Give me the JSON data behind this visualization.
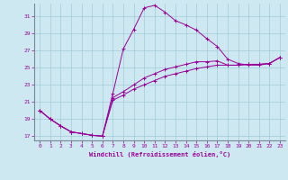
{
  "background_color": "#cde8f0",
  "line_color": "#990099",
  "grid_color": "#a0ccd8",
  "xlim": [
    -0.5,
    23.5
  ],
  "ylim": [
    16.5,
    32.5
  ],
  "xticks": [
    0,
    1,
    2,
    3,
    4,
    5,
    6,
    7,
    8,
    9,
    10,
    11,
    12,
    13,
    14,
    15,
    16,
    17,
    18,
    19,
    20,
    21,
    22,
    23
  ],
  "yticks": [
    17,
    19,
    21,
    23,
    25,
    27,
    29,
    31
  ],
  "xlabel": "Windchill (Refroidissement éolien,°C)",
  "hours": [
    0,
    1,
    2,
    3,
    4,
    5,
    6,
    7,
    8,
    9,
    10,
    11,
    12,
    13,
    14,
    15,
    16,
    17,
    18,
    19,
    20,
    21,
    22,
    23
  ],
  "main_curve": [
    20.0,
    19.0,
    18.2,
    17.5,
    17.3,
    17.1,
    17.0,
    22.0,
    27.2,
    29.5,
    32.0,
    32.3,
    31.5,
    30.5,
    30.0,
    29.4,
    28.4,
    27.5,
    26.0,
    25.5,
    25.3,
    25.3,
    25.5,
    26.2
  ],
  "line2": [
    20.0,
    19.0,
    18.2,
    17.5,
    17.3,
    17.1,
    17.0,
    21.2,
    21.8,
    22.5,
    23.0,
    23.5,
    24.0,
    24.3,
    24.6,
    24.9,
    25.1,
    25.3,
    25.3,
    25.3,
    25.4,
    25.4,
    25.5,
    26.2
  ],
  "line3": [
    20.0,
    19.0,
    18.2,
    17.5,
    17.3,
    17.1,
    17.0,
    21.5,
    22.2,
    23.0,
    23.8,
    24.3,
    24.8,
    25.1,
    25.4,
    25.7,
    25.7,
    25.8,
    25.3,
    25.3,
    25.4,
    25.4,
    25.5,
    26.2
  ]
}
